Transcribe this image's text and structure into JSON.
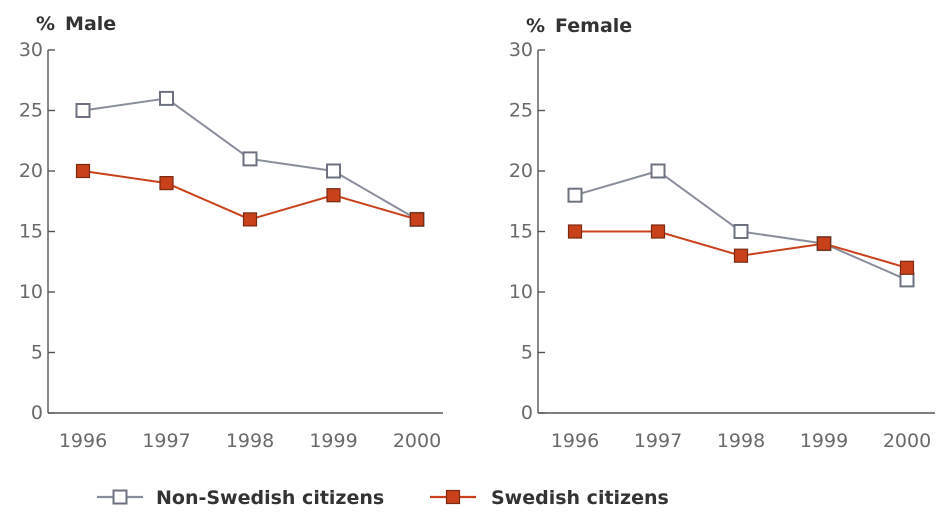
{
  "chart_data": [
    {
      "type": "line",
      "title": "Male",
      "ylabel": "%",
      "xlabel": "",
      "categories": [
        "1996",
        "1997",
        "1998",
        "1999",
        "2000"
      ],
      "ylim": [
        0,
        30
      ],
      "yticks": [
        0,
        5,
        10,
        15,
        20,
        25,
        30
      ],
      "grid": false,
      "series": [
        {
          "name": "Non-Swedish citizens",
          "color": "#8a8e9c",
          "marker": "open-square",
          "values": [
            25,
            26,
            21,
            20,
            16
          ]
        },
        {
          "name": "Swedish citizens",
          "color": "#c8411a",
          "marker": "filled-square",
          "values": [
            20,
            19,
            16,
            18,
            16
          ]
        }
      ]
    },
    {
      "type": "line",
      "title": "Female",
      "ylabel": "%",
      "xlabel": "",
      "categories": [
        "1996",
        "1997",
        "1998",
        "1999",
        "2000"
      ],
      "ylim": [
        0,
        30
      ],
      "yticks": [
        0,
        5,
        10,
        15,
        20,
        25,
        30
      ],
      "grid": false,
      "series": [
        {
          "name": "Non-Swedish citizens",
          "color": "#8a8e9c",
          "marker": "open-square",
          "values": [
            18,
            20,
            15,
            14,
            11
          ]
        },
        {
          "name": "Swedish citizens",
          "color": "#c8411a",
          "marker": "filled-square",
          "values": [
            15,
            15,
            13,
            14,
            12
          ]
        }
      ]
    }
  ],
  "legend": {
    "placement": "bottom",
    "items": [
      {
        "label": "Non-Swedish citizens",
        "color": "#8a8e9c",
        "marker": "open-square"
      },
      {
        "label": "Swedish citizens",
        "color": "#c8411a",
        "marker": "filled-square"
      }
    ]
  }
}
